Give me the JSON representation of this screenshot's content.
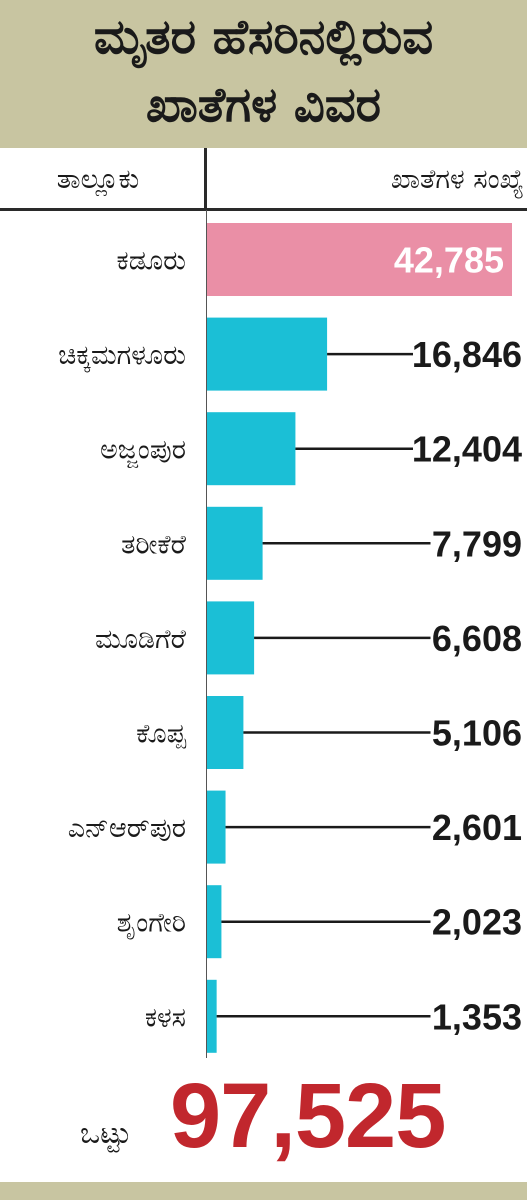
{
  "header": {
    "title_line1": "ಮೃತರ ಹೆಸರಿನಲ್ಲಿರುವ",
    "title_line2": "ಖಾತೆಗಳ ವಿವರ"
  },
  "columns": {
    "taluk": "ತಾಲ್ಲೂಕು",
    "count": "ಖಾತೆಗಳ ಸಂಖ್ಯೆ"
  },
  "colors": {
    "highlight_bar": "#ea8fa6",
    "bar": "#1bbfd6",
    "header_bg": "#c8c5a1",
    "total": "#c1272d"
  },
  "chart_data": {
    "type": "bar",
    "orientation": "horizontal",
    "categories": [
      "ಕಡೂರು",
      "ಚಿಕ್ಕಮಗಳೂರು",
      "ಅಜ್ಜಂಪುರ",
      "ತರೀಕೆರೆ",
      "ಮೂಡಿಗೆರೆ",
      "ಕೊಪ್ಪ",
      "ಎನ್‌ಆರ್‌ಪುರ",
      "ಶೃಂಗೇರಿ",
      "ಕಳಸ"
    ],
    "values": [
      42785,
      16846,
      12404,
      7799,
      6608,
      5106,
      2601,
      2023,
      1353
    ],
    "value_labels": [
      "42,785",
      "16,846",
      "12,404",
      "7,799",
      "6,608",
      "5,106",
      "2,601",
      "2,023",
      "1,353"
    ],
    "highlight_index": 0
  },
  "total": {
    "label": "ಒಟ್ಟು",
    "value": "97,525"
  }
}
